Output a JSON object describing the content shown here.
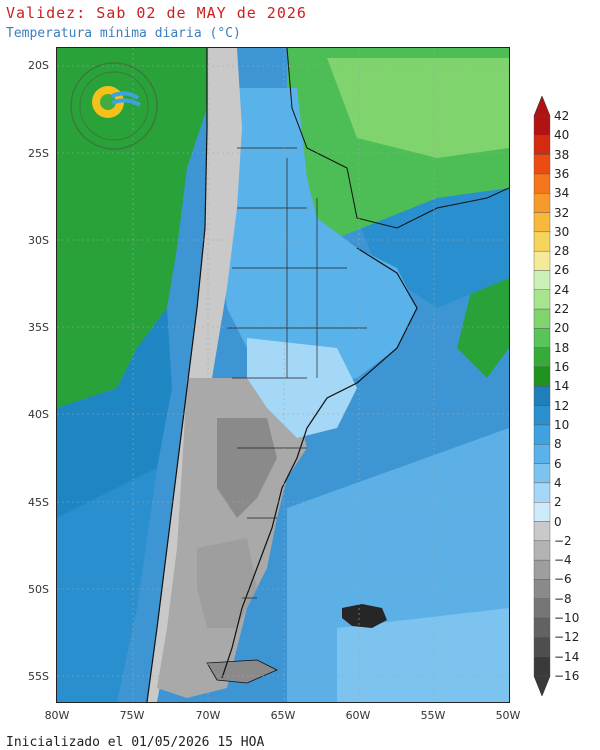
{
  "header": {
    "title": "Validez: Sab 02 de MAY de 2026",
    "subtitle": "Temperatura mínima diaria (°C)"
  },
  "footer": {
    "text": "Inicializado el 01/05/2026 15 HOA"
  },
  "map": {
    "latitude_labels": [
      "20S",
      "25S",
      "30S",
      "35S",
      "40S",
      "45S",
      "50S",
      "55S"
    ],
    "longitude_labels": [
      "80W",
      "75W",
      "70W",
      "65W",
      "60W",
      "55W",
      "50W"
    ],
    "ocean_color": "#4a9ad6",
    "land_warm_color": "#3fae3f",
    "land_cold_color": "#a9a9a9"
  },
  "logo": {
    "text": "SERVICIO METEOROLÓGICO NACIONAL ARGENTINA",
    "bottom_text": "ARGENTINA"
  },
  "legend": {
    "labels": [
      "42",
      "40",
      "38",
      "36",
      "34",
      "32",
      "30",
      "28",
      "26",
      "24",
      "22",
      "20",
      "18",
      "16",
      "14",
      "12",
      "10",
      "8",
      "6",
      "4",
      "2",
      "0",
      "−2",
      "−4",
      "−6",
      "−8",
      "−10",
      "−12",
      "−14",
      "−16"
    ],
    "colors": [
      "#b31212",
      "#d52a12",
      "#ec4b12",
      "#f4751c",
      "#f79a2a",
      "#f7b93c",
      "#f7d45c",
      "#f5ea98",
      "#ccf0b8",
      "#a6e48e",
      "#7fd46e",
      "#58c45a",
      "#36ab3a",
      "#20921f",
      "#1f7fb8",
      "#2a8fce",
      "#3da2df",
      "#59b2ea",
      "#7cc3f0",
      "#a5d8f7",
      "#cfeafb",
      "#c9c9c9",
      "#b3b3b3",
      "#9e9e9e",
      "#8a8a8a",
      "#767676",
      "#626262",
      "#4e4e4e",
      "#3a3a3a"
    ]
  }
}
